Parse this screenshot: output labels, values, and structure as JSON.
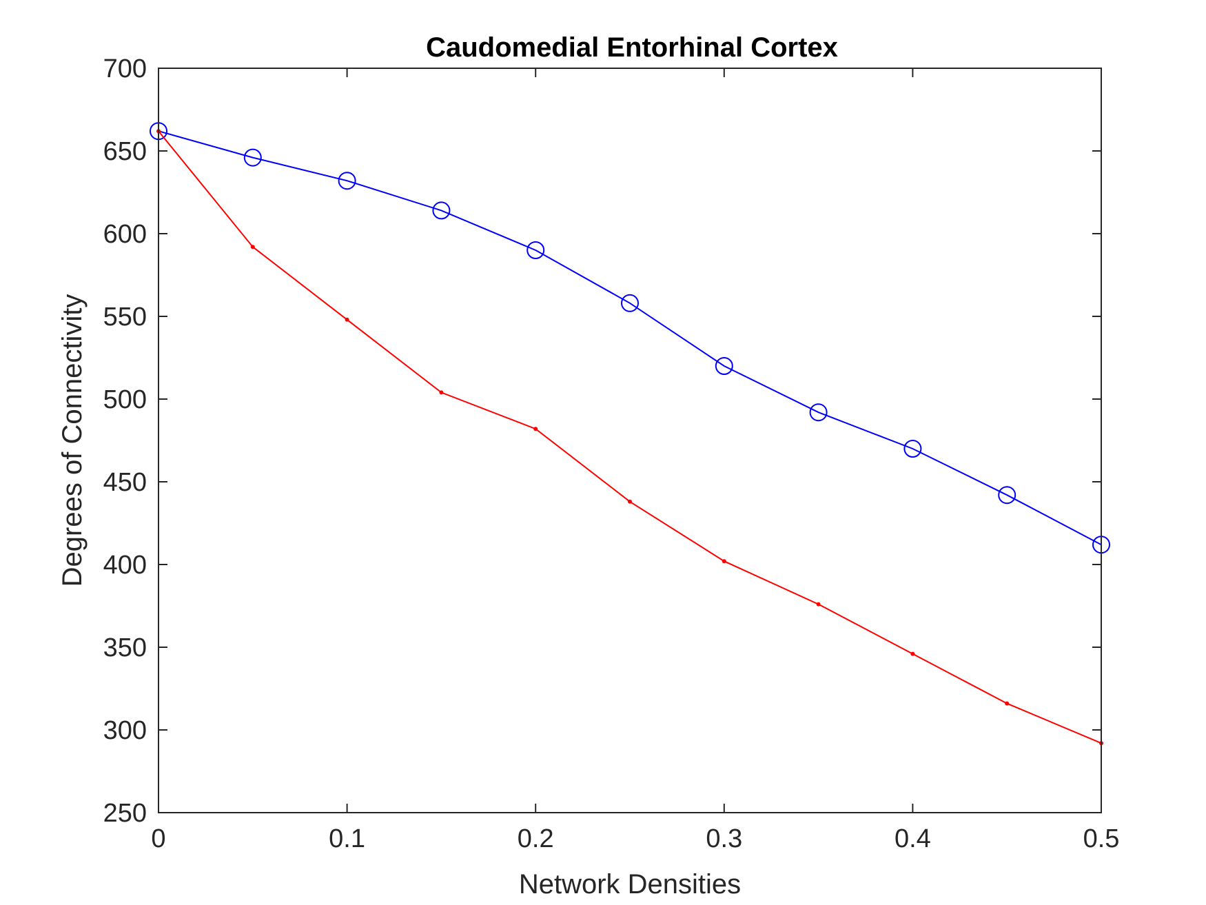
{
  "chart_data": {
    "type": "line",
    "title": "Caudomedial Entorhinal Cortex",
    "xlabel": "Network Densities",
    "ylabel": "Degrees of Connectivity",
    "xlim": [
      0,
      0.5
    ],
    "ylim": [
      250,
      700
    ],
    "xticks": [
      0,
      0.1,
      0.2,
      0.3,
      0.4,
      0.5
    ],
    "xtick_labels": [
      "0",
      "0.1",
      "0.2",
      "0.3",
      "0.4",
      "0.5"
    ],
    "yticks": [
      250,
      300,
      350,
      400,
      450,
      500,
      550,
      600,
      650,
      700
    ],
    "ytick_labels": [
      "250",
      "300",
      "350",
      "400",
      "450",
      "500",
      "550",
      "600",
      "650",
      "700"
    ],
    "grid": false,
    "x": [
      0,
      0.05,
      0.1,
      0.15,
      0.2,
      0.25,
      0.3,
      0.35,
      0.4,
      0.45,
      0.5
    ],
    "series": [
      {
        "color": "#0000ff",
        "marker": "circle",
        "values": [
          662,
          646,
          632,
          614,
          590,
          558,
          520,
          492,
          470,
          442,
          412
        ]
      },
      {
        "color": "#ff0000",
        "marker": "dot",
        "values": [
          662,
          592,
          548,
          504,
          482,
          438,
          402,
          376,
          346,
          316,
          292
        ]
      }
    ]
  }
}
